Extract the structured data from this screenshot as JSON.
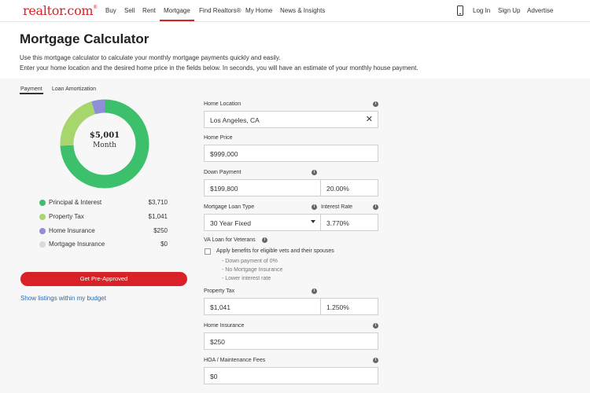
{
  "nav": {
    "logo": "realtor.com",
    "logo_mark": "®",
    "links": [
      "Buy",
      "Sell",
      "Rent",
      "Mortgage",
      "Find Realtors®",
      "My Home",
      "News & Insights"
    ],
    "right_links": [
      "Log In",
      "Sign Up",
      "Advertise"
    ],
    "active": "Mortgage",
    "phone_icon": "mobile-phone-icon"
  },
  "header": {
    "title": "Mortgage Calculator",
    "desc1": "Use this mortgage calculator to calculate your monthly mortgage payments quickly and easily.",
    "desc2": "Enter your home location and the desired home price in the fields below. In seconds, you will have an estimate of your monthly house payment."
  },
  "tabs": [
    "Payment",
    "Loan Amortization"
  ],
  "donut": {
    "amount": "$5,001",
    "label": "Month"
  },
  "breakdown": [
    {
      "label": "Principal & Interest",
      "value": "$3,710",
      "amount": 3710,
      "color": "#3cc06b"
    },
    {
      "label": "Property Tax",
      "value": "$1,041",
      "amount": 1041,
      "color": "#a7d66d"
    },
    {
      "label": "Home Insurance",
      "value": "$250",
      "amount": 250,
      "color": "#8f8fd8"
    },
    {
      "label": "Mortgage Insurance",
      "value": "$0",
      "amount": 0,
      "color": "#d9d9d9"
    }
  ],
  "buttons": {
    "preapproved": "Get Pre-Approved",
    "listings": "Show listings within my budget"
  },
  "form": {
    "home_location": {
      "label": "Home Location",
      "value": "Los Angeles, CA"
    },
    "home_price": {
      "label": "Home Price",
      "value": "$999,000"
    },
    "down_payment": {
      "label": "Down Payment",
      "value": "$199,800",
      "percent": "20.00%"
    },
    "loan_type": {
      "label": "Mortgage Loan Type",
      "value": "30 Year Fixed"
    },
    "interest_rate": {
      "label": "Interest Rate",
      "value": "3.770%"
    },
    "va": {
      "label": "VA Loan for Veterans",
      "checkbox_label": "Apply benefits for eligible vets and their spouses",
      "benefits": [
        "- Down payment of 0%",
        "- No Mortgage Insurance",
        "- Lower interest rate"
      ]
    },
    "property_tax": {
      "label": "Property Tax",
      "value": "$1,041",
      "percent": "1.250%"
    },
    "home_insurance": {
      "label": "Home Insurance",
      "value": "$250"
    },
    "hoa": {
      "label": "HOA / Maintenance Fees",
      "value": "$0"
    }
  },
  "icons": {
    "info": "info-icon",
    "clear": "close-icon",
    "dropdown": "chevron-down-icon"
  },
  "colors": {
    "brand_red": "#d92228",
    "link_blue": "#1f6db5"
  }
}
